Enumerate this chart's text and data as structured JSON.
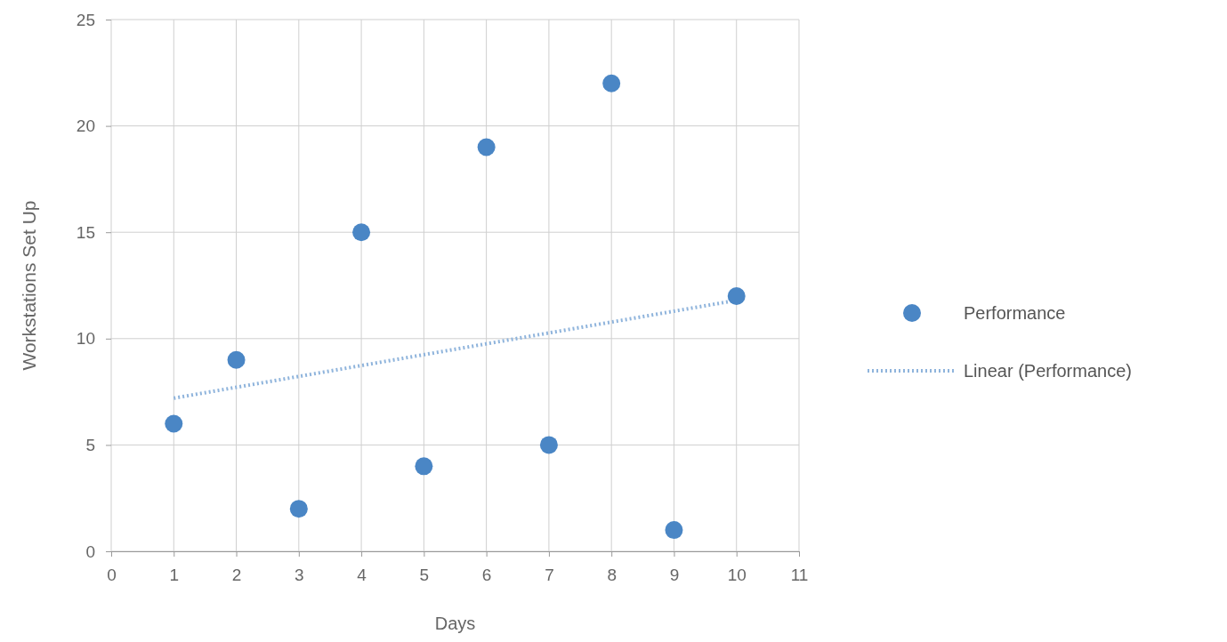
{
  "chart_data": {
    "type": "scatter",
    "xlabel": "Days",
    "ylabel": "Workstations Set Up",
    "xlim": [
      0,
      11
    ],
    "xticks": [
      0,
      1,
      2,
      3,
      4,
      5,
      6,
      7,
      8,
      9,
      10,
      11
    ],
    "ylim": [
      0,
      25
    ],
    "yticks": [
      0,
      5,
      10,
      15,
      20,
      25
    ],
    "grid": true,
    "legend": "right",
    "series": [
      {
        "name": "Performance",
        "color": "#4a86c5",
        "marker": "circle",
        "x": [
          1,
          2,
          3,
          4,
          5,
          6,
          7,
          8,
          9,
          10
        ],
        "values": [
          6,
          9,
          2,
          15,
          4,
          19,
          5,
          22,
          1,
          12
        ]
      },
      {
        "name": "Linear (Performance)",
        "type": "line",
        "color": "#8fb4dc",
        "line_style": "dotted",
        "marker": "none",
        "x": [
          1,
          10
        ],
        "values": [
          7.2,
          11.8
        ]
      }
    ]
  }
}
